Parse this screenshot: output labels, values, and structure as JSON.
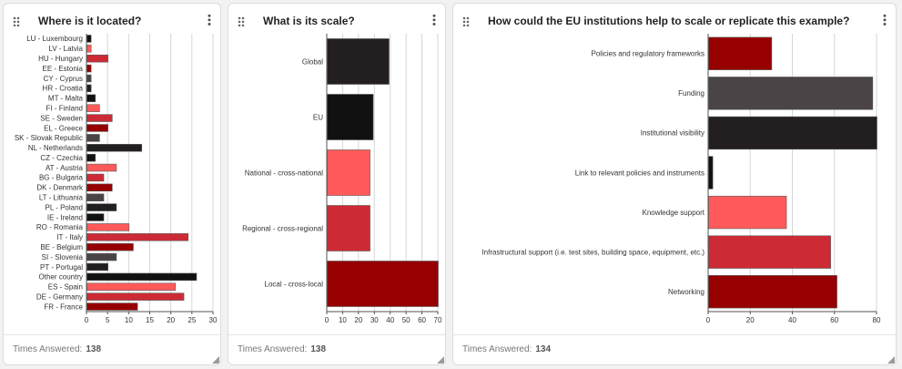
{
  "panels": [
    {
      "title": "Where is it located?",
      "footer_label": "Times Answered:",
      "footer_count": "138"
    },
    {
      "title": "What is its scale?",
      "footer_label": "Times Answered:",
      "footer_count": "138"
    },
    {
      "title": "How could the EU institutions help to scale or replicate this example?",
      "footer_label": "Times Answered:",
      "footer_count": "134"
    }
  ],
  "chart_data": [
    {
      "type": "bar",
      "orientation": "horizontal",
      "categories": [
        "LU - Luxembourg",
        "LV - Latvia",
        "HU - Hungary",
        "EE - Estonia",
        "CY - Cyprus",
        "HR - Croatia",
        "MT - Malta",
        "FI - Finland",
        "SE - Sweden",
        "EL - Greece",
        "SK - Slovak Republic",
        "NL - Netherlands",
        "CZ - Czechia",
        "AT - Austria",
        "BG - Bulgaria",
        "DK - Denmark",
        "LT - Lithuania",
        "PL - Poland",
        "IE - Ireland",
        "RO - Romania",
        "IT - Italy",
        "BE - Belgium",
        "SI - Slovenia",
        "PT - Portugal",
        "Other country",
        "ES - Spain",
        "DE - Germany",
        "FR - France"
      ],
      "values": [
        1,
        1,
        5,
        1,
        1,
        1,
        2,
        3,
        6,
        5,
        3,
        13,
        2,
        7,
        4,
        6,
        4,
        7,
        4,
        10,
        24,
        11,
        7,
        5,
        26,
        21,
        23,
        12
      ],
      "colors": [
        "#111111",
        "#ff5a5a",
        "#cc2b35",
        "#960000",
        "#4a4446",
        "#231f20",
        "#111111",
        "#ff5a5a",
        "#cc2b35",
        "#960000",
        "#4a4446",
        "#231f20",
        "#111111",
        "#ff5a5a",
        "#cc2b35",
        "#960000",
        "#4a4446",
        "#231f20",
        "#111111",
        "#ff5a5a",
        "#cc2b35",
        "#960000",
        "#4a4446",
        "#231f20",
        "#111111",
        "#ff5a5a",
        "#cc2b35",
        "#960000"
      ],
      "xlim": [
        0,
        30
      ],
      "ticks": [
        0,
        5,
        10,
        15,
        20,
        25,
        30
      ],
      "grid": true
    },
    {
      "type": "bar",
      "orientation": "horizontal",
      "categories": [
        "Global",
        "EU",
        "National - cross-national",
        "Regional - cross-regional",
        "Local - cross-local"
      ],
      "values": [
        39,
        29,
        27,
        27,
        70
      ],
      "colors": [
        "#231f20",
        "#111111",
        "#ff5a5a",
        "#cc2b35",
        "#960000"
      ],
      "xlim": [
        0,
        70
      ],
      "ticks": [
        0,
        10,
        20,
        30,
        40,
        50,
        60,
        70
      ],
      "grid": true
    },
    {
      "type": "bar",
      "orientation": "horizontal",
      "categories": [
        "Policies and regulatory frameworks",
        "Funding",
        "Institutional visibility",
        "Link to relevant policies and instruments",
        "Knowledge support",
        "Infrastructural support (i.e. test sites, building space, equipment, etc.)",
        "Networking"
      ],
      "values": [
        30,
        78,
        80,
        2,
        37,
        58,
        61
      ],
      "colors": [
        "#960000",
        "#4a4446",
        "#231f20",
        "#111111",
        "#ff5a5a",
        "#cc2b35",
        "#960000"
      ],
      "xlim": [
        0,
        80
      ],
      "ticks": [
        0,
        20,
        40,
        60,
        80
      ],
      "grid": true
    }
  ]
}
